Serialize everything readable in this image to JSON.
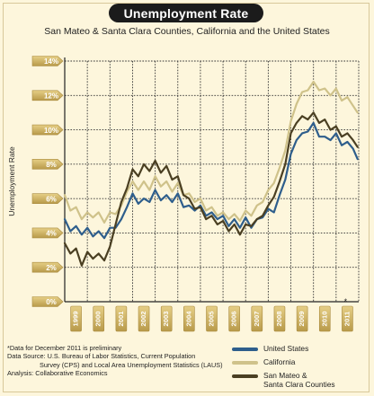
{
  "chart_data": {
    "type": "line",
    "title": "Unemployment Rate",
    "subtitle": "San Mateo & Santa Clara Counties, California and the United States",
    "ylabel": "Unemployment Rate",
    "xlabel": "",
    "ylim": [
      0,
      14
    ],
    "yticks": [
      "0%",
      "2%",
      "4%",
      "6%",
      "8%",
      "10%",
      "12%",
      "14%"
    ],
    "xlim": [
      1999,
      2012
    ],
    "xticks": [
      "1999",
      "2000",
      "2001",
      "2002",
      "2003",
      "2004",
      "2005",
      "2006",
      "2007",
      "2008",
      "2009",
      "2010",
      "2011"
    ],
    "grid": true,
    "legend_position": "bottom-right",
    "preliminary_marker": "*",
    "series": [
      {
        "name": "United States",
        "color": "#2e5e8c",
        "x": [
          1999.0,
          1999.25,
          1999.5,
          1999.75,
          2000.0,
          2000.25,
          2000.5,
          2000.75,
          2001.0,
          2001.25,
          2001.5,
          2001.75,
          2002.0,
          2002.25,
          2002.5,
          2002.75,
          2003.0,
          2003.25,
          2003.5,
          2003.75,
          2004.0,
          2004.25,
          2004.5,
          2004.75,
          2005.0,
          2005.25,
          2005.5,
          2005.75,
          2006.0,
          2006.25,
          2006.5,
          2006.75,
          2007.0,
          2007.25,
          2007.5,
          2007.75,
          2008.0,
          2008.25,
          2008.5,
          2008.75,
          2009.0,
          2009.25,
          2009.5,
          2009.75,
          2010.0,
          2010.25,
          2010.5,
          2010.75,
          2011.0,
          2011.25,
          2011.5,
          2011.75,
          2011.95
        ],
        "y": [
          4.8,
          4.1,
          4.4,
          3.9,
          4.3,
          3.8,
          4.1,
          3.7,
          4.3,
          4.3,
          4.8,
          5.5,
          6.3,
          5.7,
          6.0,
          5.8,
          6.5,
          5.9,
          6.2,
          5.8,
          6.3,
          5.5,
          5.6,
          5.3,
          5.6,
          5.0,
          5.2,
          4.8,
          5.0,
          4.4,
          4.8,
          4.3,
          4.9,
          4.3,
          4.8,
          4.9,
          5.4,
          5.2,
          6.2,
          7.1,
          8.6,
          9.4,
          9.8,
          9.9,
          10.4,
          9.6,
          9.6,
          9.4,
          9.8,
          9.1,
          9.3,
          8.9,
          8.3
        ]
      },
      {
        "name": "California",
        "color": "#cfc28a",
        "x": [
          1999.0,
          1999.25,
          1999.5,
          1999.75,
          2000.0,
          2000.25,
          2000.5,
          2000.75,
          2001.0,
          2001.25,
          2001.5,
          2001.75,
          2002.0,
          2002.25,
          2002.5,
          2002.75,
          2003.0,
          2003.25,
          2003.5,
          2003.75,
          2004.0,
          2004.25,
          2004.5,
          2004.75,
          2005.0,
          2005.25,
          2005.5,
          2005.75,
          2006.0,
          2006.25,
          2006.5,
          2006.75,
          2007.0,
          2007.25,
          2007.5,
          2007.75,
          2008.0,
          2008.25,
          2008.5,
          2008.75,
          2009.0,
          2009.25,
          2009.5,
          2009.75,
          2010.0,
          2010.25,
          2010.5,
          2010.75,
          2011.0,
          2011.25,
          2011.5,
          2011.75,
          2011.95
        ],
        "y": [
          6.2,
          5.3,
          5.5,
          4.8,
          5.2,
          4.9,
          5.2,
          4.6,
          5.2,
          5.1,
          5.6,
          6.4,
          7.0,
          6.5,
          7.0,
          6.5,
          7.3,
          6.7,
          7.0,
          6.4,
          6.9,
          6.2,
          6.3,
          5.8,
          6.0,
          5.3,
          5.5,
          5.0,
          5.2,
          4.8,
          5.1,
          4.7,
          5.3,
          5.0,
          5.6,
          5.8,
          6.5,
          6.9,
          7.8,
          8.8,
          10.5,
          11.5,
          12.2,
          12.3,
          12.8,
          12.3,
          12.4,
          12.0,
          12.4,
          11.7,
          11.9,
          11.4,
          11.0
        ]
      },
      {
        "name": "San Mateo & Santa Clara Counties",
        "color": "#4a3f22",
        "x": [
          1999.0,
          1999.25,
          1999.5,
          1999.75,
          2000.0,
          2000.25,
          2000.5,
          2000.75,
          2001.0,
          2001.25,
          2001.5,
          2001.75,
          2002.0,
          2002.25,
          2002.5,
          2002.75,
          2003.0,
          2003.25,
          2003.5,
          2003.75,
          2004.0,
          2004.25,
          2004.5,
          2004.75,
          2005.0,
          2005.25,
          2005.5,
          2005.75,
          2006.0,
          2006.25,
          2006.5,
          2006.75,
          2007.0,
          2007.25,
          2007.5,
          2007.75,
          2008.0,
          2008.25,
          2008.5,
          2008.75,
          2009.0,
          2009.25,
          2009.5,
          2009.75,
          2010.0,
          2010.25,
          2010.5,
          2010.75,
          2011.0,
          2011.25,
          2011.5,
          2011.75,
          2011.95
        ],
        "y": [
          3.4,
          2.8,
          3.1,
          2.1,
          2.9,
          2.5,
          2.8,
          2.4,
          3.2,
          4.5,
          5.8,
          6.6,
          7.7,
          7.3,
          8.0,
          7.6,
          8.2,
          7.5,
          7.9,
          7.1,
          7.3,
          6.2,
          6.0,
          5.4,
          5.5,
          4.8,
          5.0,
          4.5,
          4.7,
          4.1,
          4.5,
          3.9,
          4.5,
          4.4,
          4.8,
          5.0,
          5.6,
          6.1,
          7.0,
          8.0,
          9.8,
          10.4,
          10.8,
          10.6,
          11.0,
          10.4,
          10.6,
          10.0,
          10.2,
          9.6,
          9.8,
          9.4,
          9.0
        ]
      }
    ]
  },
  "footnotes": {
    "line1": "*Data for December 2011 is preliminary",
    "line2": "Data Source: U.S. Bureau of Labor Statistics, Current Population",
    "line3": "Survey (CPS) and Local Area Unemployment Statistics (LAUS)",
    "line4": "Analysis: Collaborative Economics"
  },
  "legend": {
    "us": "United States",
    "ca": "California",
    "sm_line1": "San Mateo &",
    "sm_line2": "Santa Clara Counties"
  }
}
